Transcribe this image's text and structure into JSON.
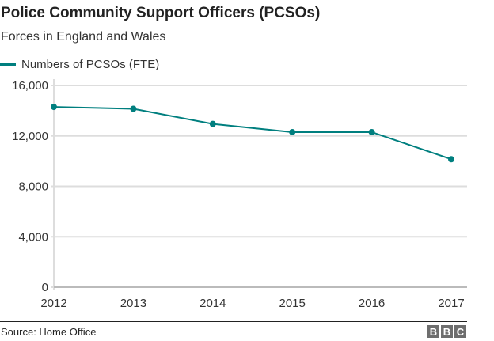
{
  "header": {
    "title": "Police Community Support Officers (PCSOs)",
    "subtitle": "Forces in England and Wales"
  },
  "footer": {
    "source": "Source: Home Office",
    "logo_letters": [
      "B",
      "B",
      "C"
    ]
  },
  "colors": {
    "series": "#007f7f",
    "grid": "#dddddd",
    "text": "#222222",
    "logo_bg": "#6e6e6e"
  },
  "chart_data": {
    "type": "line",
    "title": "Police Community Support Officers (PCSOs)",
    "subtitle": "Forces in England and Wales",
    "xlabel": "",
    "ylabel": "",
    "categories": [
      "2012",
      "2013",
      "2014",
      "2015",
      "2016",
      "2017"
    ],
    "series": [
      {
        "name": "Numbers of PCSOs (FTE)",
        "values": [
          14300,
          14150,
          12950,
          12300,
          12300,
          10150
        ]
      }
    ],
    "ylim": [
      0,
      16000
    ],
    "yticks": [
      0,
      4000,
      8000,
      12000,
      16000
    ],
    "ytick_labels": [
      "0",
      "4,000",
      "8,000",
      "12,000",
      "16,000"
    ],
    "grid": true,
    "legend": "top-left"
  }
}
